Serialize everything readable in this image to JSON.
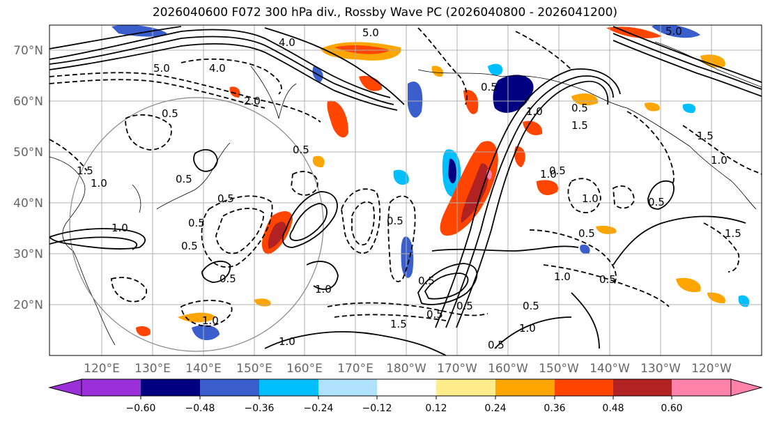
{
  "title": "2026040600 F072 300 hPa div., Rossby Wave PC (2026040800 - 2026041200)",
  "lat_labels": [
    "70°N",
    "60°N",
    "50°N",
    "40°N",
    "30°N",
    "20°N"
  ],
  "lon_labels": [
    "120°E",
    "130°E",
    "140°E",
    "150°E",
    "160°E",
    "170°E",
    "180°W",
    "170°W",
    "160°W",
    "150°W",
    "140°W",
    "130°W",
    "120°W"
  ],
  "colorbar": {
    "ticks": [
      "−0.60",
      "−0.48",
      "−0.36",
      "−0.24",
      "−0.12",
      "0.12",
      "0.24",
      "0.36",
      "0.48",
      "0.60"
    ],
    "colors": [
      "#9b30d9",
      "#000080",
      "#3a5fcd",
      "#00bfff",
      "#b0e2ff",
      "#ffffff",
      "#ffec8b",
      "#ffa500",
      "#ff4500",
      "#b22222",
      "#ff82ab"
    ]
  },
  "contour_labels": [
    "4.0",
    "4.0",
    "5.0",
    "2.0",
    "1.5",
    "1.0",
    "0.5",
    "0.5",
    "0.5",
    "0.5",
    "1.0",
    "0.5",
    "0.5",
    "0.5",
    "1.0",
    "0.5",
    "0.5",
    "1.0",
    "0.5",
    "0.5",
    "1.0",
    "1.5",
    "0.5",
    "1.0",
    "0.5",
    "1.5",
    "1.0",
    "0.5",
    "0.5",
    "1.0",
    "0.5",
    "0.5",
    "1.0",
    "1.5",
    "1.5",
    "0.5",
    "5.0",
    "1.0",
    "0.5",
    "5.0",
    "1.0"
  ],
  "colors": {
    "grid": "#b0b0b0",
    "coast": "#000000",
    "circle": "#888888"
  }
}
